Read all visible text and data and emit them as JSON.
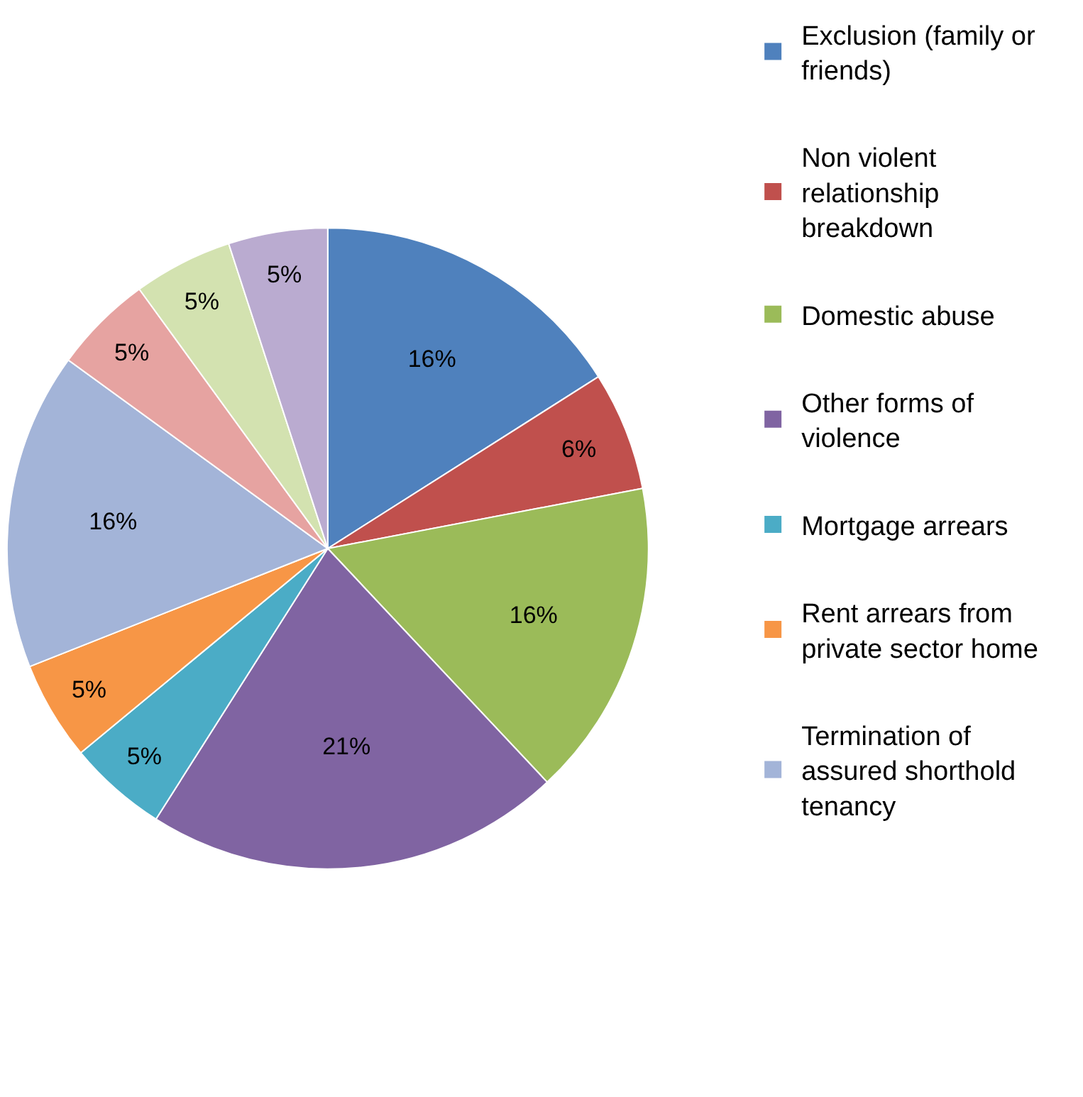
{
  "chart_data": {
    "type": "pie",
    "categories": [
      "Exclusion (family or friends)",
      "Non violent relationship breakdown",
      "Domestic abuse",
      "Other forms of violence",
      "Mortgage arrears",
      "Rent arrears from private sector home",
      "Termination of assured shorthold tenancy",
      null,
      null,
      null
    ],
    "values": [
      16,
      6,
      16,
      21,
      5,
      5,
      16,
      5,
      5,
      5
    ],
    "value_labels": [
      "16%",
      "6%",
      "16%",
      "21%",
      "5%",
      "5%",
      "16%",
      "5%",
      "5%",
      "5%"
    ],
    "colors": [
      "#4f81bd",
      "#c0504d",
      "#9bbb59",
      "#8064a2",
      "#4bacc6",
      "#f79646",
      "#a3b4d8",
      "#e6a3a1",
      "#d3e2b0",
      "#baabd0"
    ],
    "legend": "top right"
  }
}
